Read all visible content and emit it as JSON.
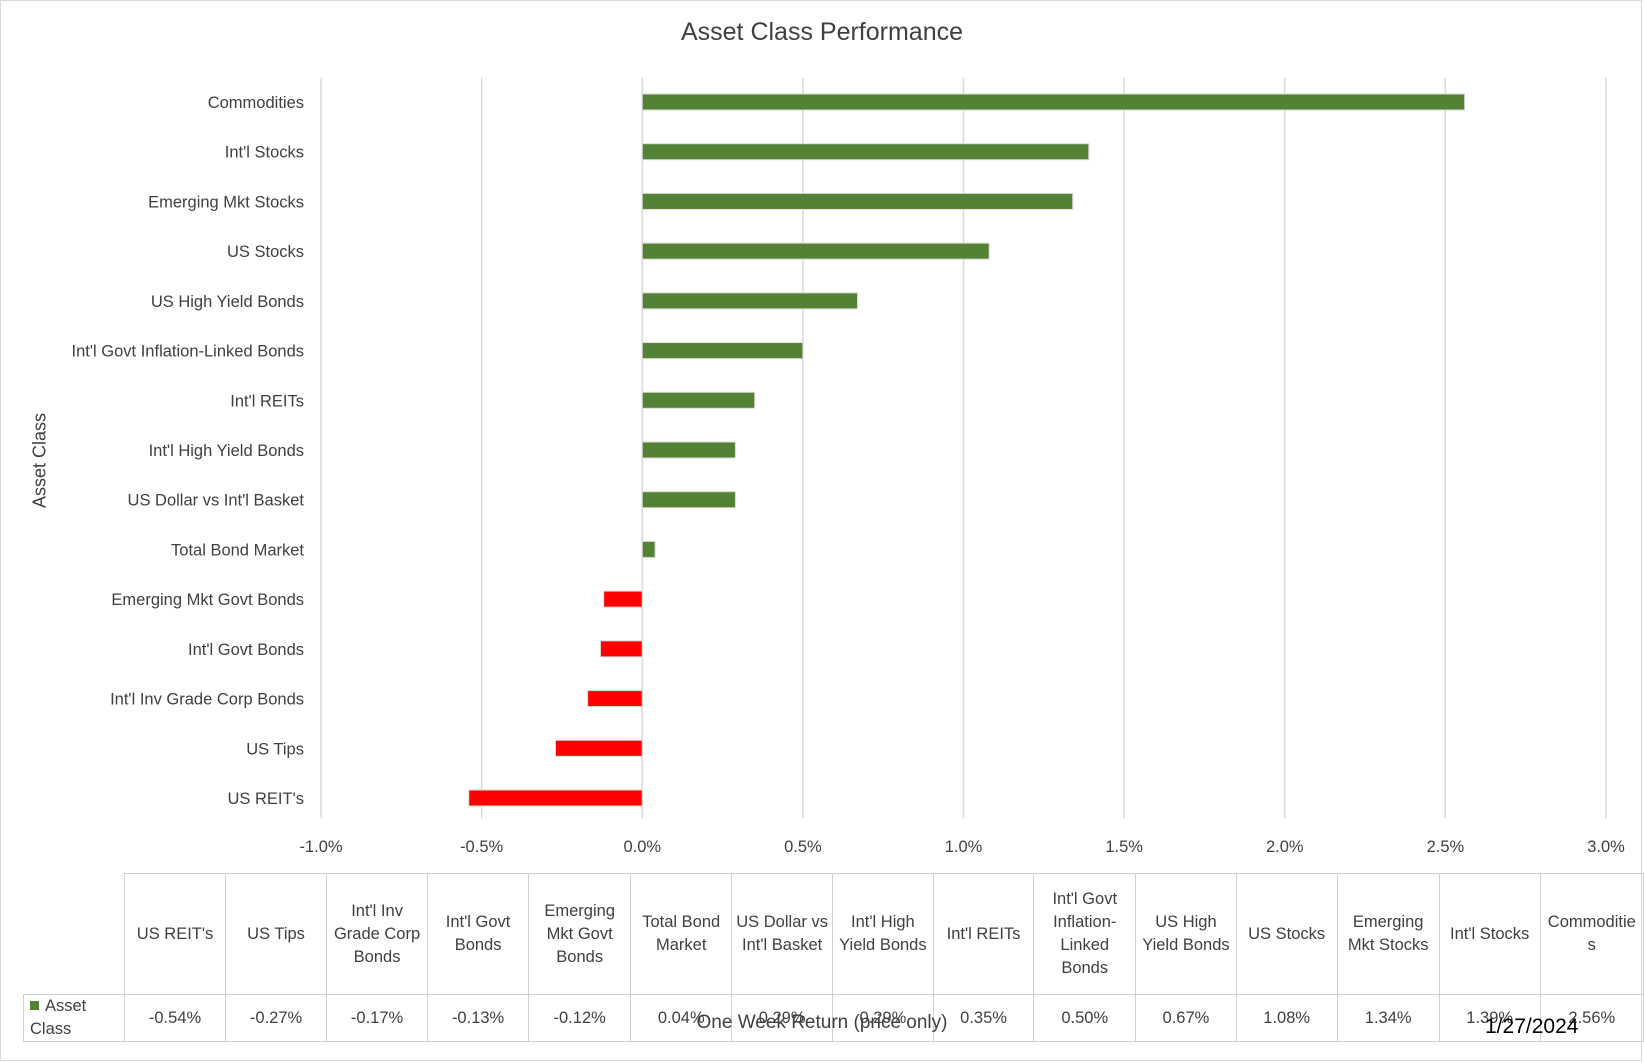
{
  "colors": {
    "positive": "#548235",
    "negative": "#ff0000",
    "grid": "#d9d9d9",
    "text": "#404040"
  },
  "chart_data": {
    "type": "bar",
    "orientation": "horizontal",
    "title": "Asset Class Performance",
    "xlabel": "One Week Return (price only)",
    "ylabel": "Asset Class",
    "date": "1/27/2024",
    "xlim": [
      -0.01,
      0.03
    ],
    "x_ticks": [
      -0.01,
      -0.005,
      0,
      0.005,
      0.01,
      0.015,
      0.02,
      0.025,
      0.03
    ],
    "x_tick_labels": [
      "-1.0%",
      "-0.5%",
      "0.0%",
      "0.5%",
      "1.0%",
      "1.5%",
      "2.0%",
      "2.5%",
      "3.0%"
    ],
    "grid": true,
    "categories": [
      "US REIT's",
      "US Tips",
      "Int'l Inv Grade Corp Bonds",
      "Int'l Govt Bonds",
      "Emerging Mkt Govt Bonds",
      "Total Bond Market",
      "US Dollar vs Int'l Basket",
      "Int'l High Yield Bonds",
      "Int'l REITs",
      "Int'l Govt Inflation-Linked Bonds",
      "US High Yield Bonds",
      "US Stocks",
      "Emerging Mkt Stocks",
      "Int'l Stocks",
      "Commodities"
    ],
    "series": [
      {
        "name": "Asset Class",
        "values": [
          -0.0054,
          -0.0027,
          -0.0017,
          -0.0013,
          -0.0012,
          0.0004,
          0.0029,
          0.0029,
          0.0035,
          0.005,
          0.0067,
          0.0108,
          0.0134,
          0.0139,
          0.0256
        ],
        "labels": [
          "-0.54%",
          "-0.27%",
          "-0.17%",
          "-0.13%",
          "-0.12%",
          "0.04%",
          "0.29%",
          "0.29%",
          "0.35%",
          "0.50%",
          "0.67%",
          "1.08%",
          "1.34%",
          "1.39%",
          "2.56%"
        ]
      }
    ],
    "table": {
      "legend_label": "Asset Class",
      "headers": [
        "US REIT's",
        "US Tips",
        "Int'l Inv Grade Corp Bonds",
        "Int'l Govt Bonds",
        "Emerging Mkt Govt Bonds",
        "Total Bond Market",
        "US Dollar vs Int'l Basket",
        "Int'l High Yield Bonds",
        "Int'l REITs",
        "Int'l Govt Inflation-Linked Bonds",
        "US High Yield Bonds",
        "US Stocks",
        "Emerging Mkt Stocks",
        "Int'l Stocks",
        "Commoditie s"
      ]
    }
  }
}
